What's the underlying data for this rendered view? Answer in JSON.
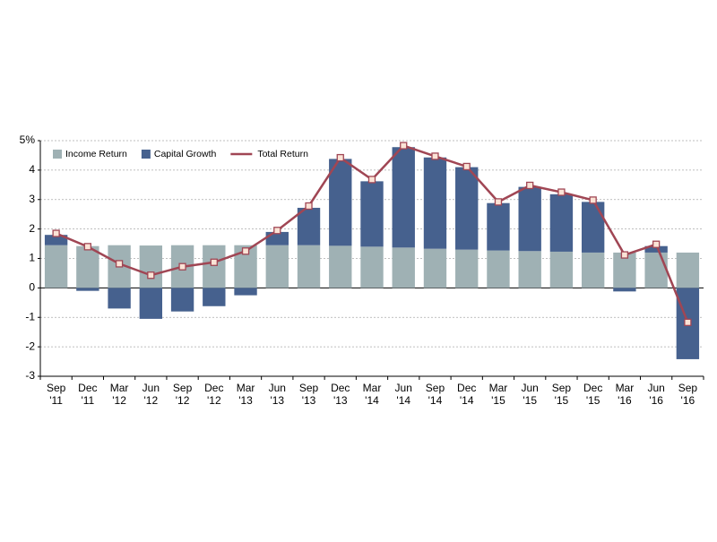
{
  "chart_data": {
    "type": "bar-line",
    "categories": [
      [
        "Sep",
        "'11"
      ],
      [
        "Dec",
        "'11"
      ],
      [
        "Mar",
        "'12"
      ],
      [
        "Jun",
        "'12"
      ],
      [
        "Sep",
        "'12"
      ],
      [
        "Dec",
        "'12"
      ],
      [
        "Mar",
        "'13"
      ],
      [
        "Jun",
        "'13"
      ],
      [
        "Sep",
        "'13"
      ],
      [
        "Dec",
        "'13"
      ],
      [
        "Mar",
        "'14"
      ],
      [
        "Jun",
        "'14"
      ],
      [
        "Sep",
        "'14"
      ],
      [
        "Dec",
        "'14"
      ],
      [
        "Mar",
        "'15"
      ],
      [
        "Jun",
        "'15"
      ],
      [
        "Sep",
        "'15"
      ],
      [
        "Dec",
        "'15"
      ],
      [
        "Mar",
        "'16"
      ],
      [
        "Jun",
        "'16"
      ],
      [
        "Sep",
        "'16"
      ]
    ],
    "series": [
      {
        "name": "Income Return",
        "type": "bar",
        "color": "#9fb1b4",
        "values": [
          1.45,
          1.42,
          1.45,
          1.44,
          1.45,
          1.45,
          1.45,
          1.45,
          1.45,
          1.43,
          1.4,
          1.37,
          1.33,
          1.3,
          1.27,
          1.25,
          1.23,
          1.2,
          1.2,
          1.2,
          1.2
        ]
      },
      {
        "name": "Capital Growth",
        "type": "bar",
        "color": "#46618e",
        "values": [
          0.35,
          -0.1,
          -0.7,
          -1.05,
          -0.8,
          -0.62,
          -0.25,
          0.45,
          1.27,
          2.95,
          2.22,
          3.41,
          3.1,
          2.8,
          1.61,
          2.18,
          1.95,
          1.72,
          -0.12,
          0.22,
          -2.42
        ]
      },
      {
        "name": "Total Return",
        "type": "line",
        "color": "#a04654",
        "values": [
          1.85,
          1.4,
          0.82,
          0.43,
          0.72,
          0.87,
          1.25,
          1.95,
          2.78,
          4.42,
          3.68,
          4.83,
          4.47,
          4.12,
          2.92,
          3.48,
          3.25,
          2.98,
          1.12,
          1.48,
          -1.17
        ]
      }
    ],
    "ylim": [
      -3,
      5
    ],
    "yticks": [
      -3,
      -2,
      -1,
      0,
      1,
      2,
      3,
      4,
      {
        "value": 5,
        "label": "5%"
      }
    ],
    "grid": true,
    "legend": "top-left"
  }
}
